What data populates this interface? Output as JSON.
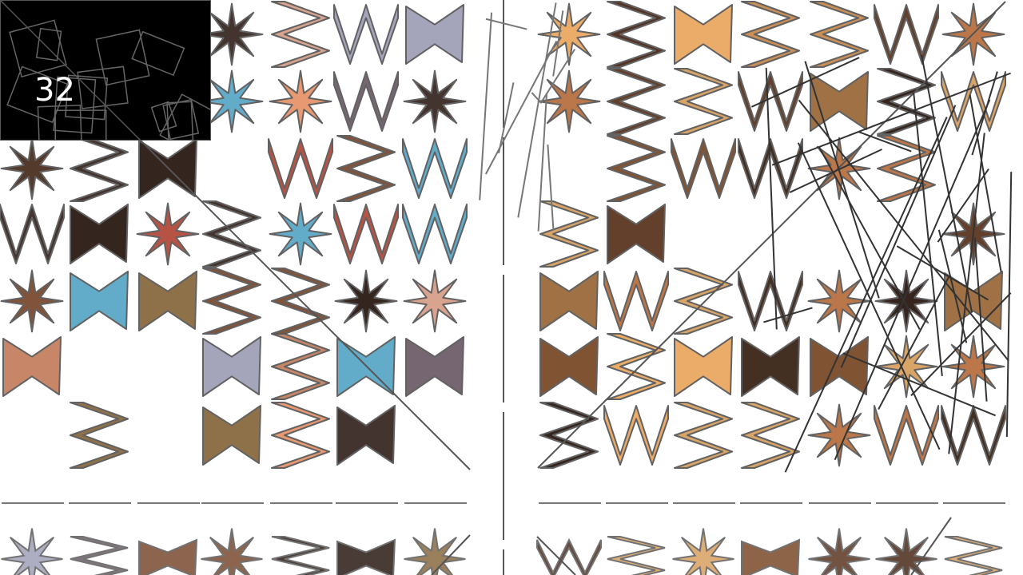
{
  "counter": {
    "value": "32"
  },
  "palette": {
    "background": "#ffffff",
    "stroke": "#5a5a5a",
    "panel": "#000000",
    "left_fills": [
      "#4a3020",
      "#7a4a30",
      "#c58060",
      "#e7946a",
      "#5aa8c8",
      "#6e5e6a",
      "#3a2a25",
      "#b44a3a",
      "#a0a0b8",
      "#d7a08a",
      "#2a1a14",
      "#8a6a40"
    ],
    "right_fills": [
      "#3b2418",
      "#5a3620",
      "#7a4a28",
      "#c98a50",
      "#e9a860",
      "#2b1a12",
      "#9a6a3a",
      "#d8a060",
      "#4a2a1a",
      "#b87040"
    ]
  }
}
